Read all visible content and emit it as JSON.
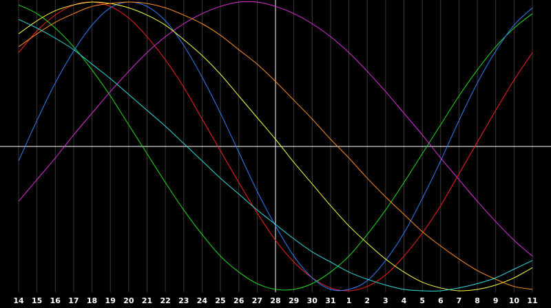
{
  "chart_data": {
    "type": "line",
    "categories": [
      "14",
      "15",
      "16",
      "17",
      "18",
      "19",
      "20",
      "21",
      "22",
      "23",
      "24",
      "25",
      "26",
      "27",
      "28",
      "29",
      "30",
      "31",
      "1",
      "2",
      "3",
      "4",
      "5",
      "6",
      "7",
      "8",
      "9",
      "10",
      "11"
    ],
    "highlight_category": "28",
    "ylim": [
      -1,
      1
    ],
    "series": [
      {
        "color": "#ff2020",
        "values": [
          0.65,
          0.8,
          0.91,
          0.98,
          1.0,
          0.97,
          0.89,
          0.76,
          0.6,
          0.41,
          0.19,
          -0.03,
          -0.25,
          -0.46,
          -0.65,
          -0.8,
          -0.91,
          -0.98,
          -1.0,
          -0.97,
          -0.89,
          -0.76,
          -0.6,
          -0.41,
          -0.19,
          0.03,
          0.25,
          0.46,
          0.65
        ]
      },
      {
        "color": "#20e020",
        "values": [
          0.98,
          0.92,
          0.82,
          0.69,
          0.53,
          0.35,
          0.15,
          -0.05,
          -0.25,
          -0.44,
          -0.61,
          -0.76,
          -0.87,
          -0.95,
          -0.99,
          -0.99,
          -0.95,
          -0.87,
          -0.76,
          -0.61,
          -0.44,
          -0.25,
          -0.05,
          0.15,
          0.35,
          0.53,
          0.69,
          0.82,
          0.92
        ]
      },
      {
        "color": "#3080ff",
        "values": [
          -0.1,
          0.18,
          0.44,
          0.66,
          0.84,
          0.96,
          1.0,
          0.97,
          0.87,
          0.7,
          0.48,
          0.23,
          -0.04,
          -0.31,
          -0.55,
          -0.76,
          -0.91,
          -0.99,
          -0.99,
          -0.93,
          -0.79,
          -0.6,
          -0.36,
          -0.1,
          0.18,
          0.44,
          0.66,
          0.84,
          0.96
        ]
      },
      {
        "color": "#e030e0",
        "values": [
          -0.38,
          -0.23,
          -0.08,
          0.08,
          0.23,
          0.38,
          0.52,
          0.65,
          0.76,
          0.85,
          0.92,
          0.97,
          1.0,
          1.0,
          0.97,
          0.92,
          0.85,
          0.76,
          0.65,
          0.52,
          0.38,
          0.23,
          0.08,
          -0.08,
          -0.23,
          -0.38,
          -0.52,
          -0.65,
          -0.76
        ]
      },
      {
        "color": "#ffff40",
        "values": [
          0.78,
          0.87,
          0.94,
          0.98,
          1.0,
          0.99,
          0.96,
          0.91,
          0.84,
          0.74,
          0.63,
          0.5,
          0.35,
          0.2,
          0.05,
          -0.11,
          -0.26,
          -0.41,
          -0.55,
          -0.67,
          -0.78,
          -0.87,
          -0.94,
          -0.98,
          -1.0,
          -0.99,
          -0.96,
          -0.91,
          -0.84
        ]
      },
      {
        "color": "#ff9020",
        "values": [
          0.69,
          0.78,
          0.86,
          0.92,
          0.97,
          0.99,
          1.0,
          0.99,
          0.96,
          0.91,
          0.85,
          0.77,
          0.67,
          0.57,
          0.45,
          0.32,
          0.19,
          0.05,
          -0.08,
          -0.22,
          -0.35,
          -0.47,
          -0.59,
          -0.69,
          -0.78,
          -0.86,
          -0.92,
          -0.97,
          -0.99
        ]
      },
      {
        "color": "#30e0e0",
        "values": [
          0.88,
          0.82,
          0.75,
          0.67,
          0.57,
          0.47,
          0.36,
          0.25,
          0.14,
          0.02,
          -0.1,
          -0.22,
          -0.33,
          -0.44,
          -0.54,
          -0.64,
          -0.73,
          -0.8,
          -0.87,
          -0.92,
          -0.96,
          -0.99,
          -1.0,
          -1.0,
          -0.98,
          -0.95,
          -0.91,
          -0.85,
          -0.79
        ]
      }
    ]
  }
}
